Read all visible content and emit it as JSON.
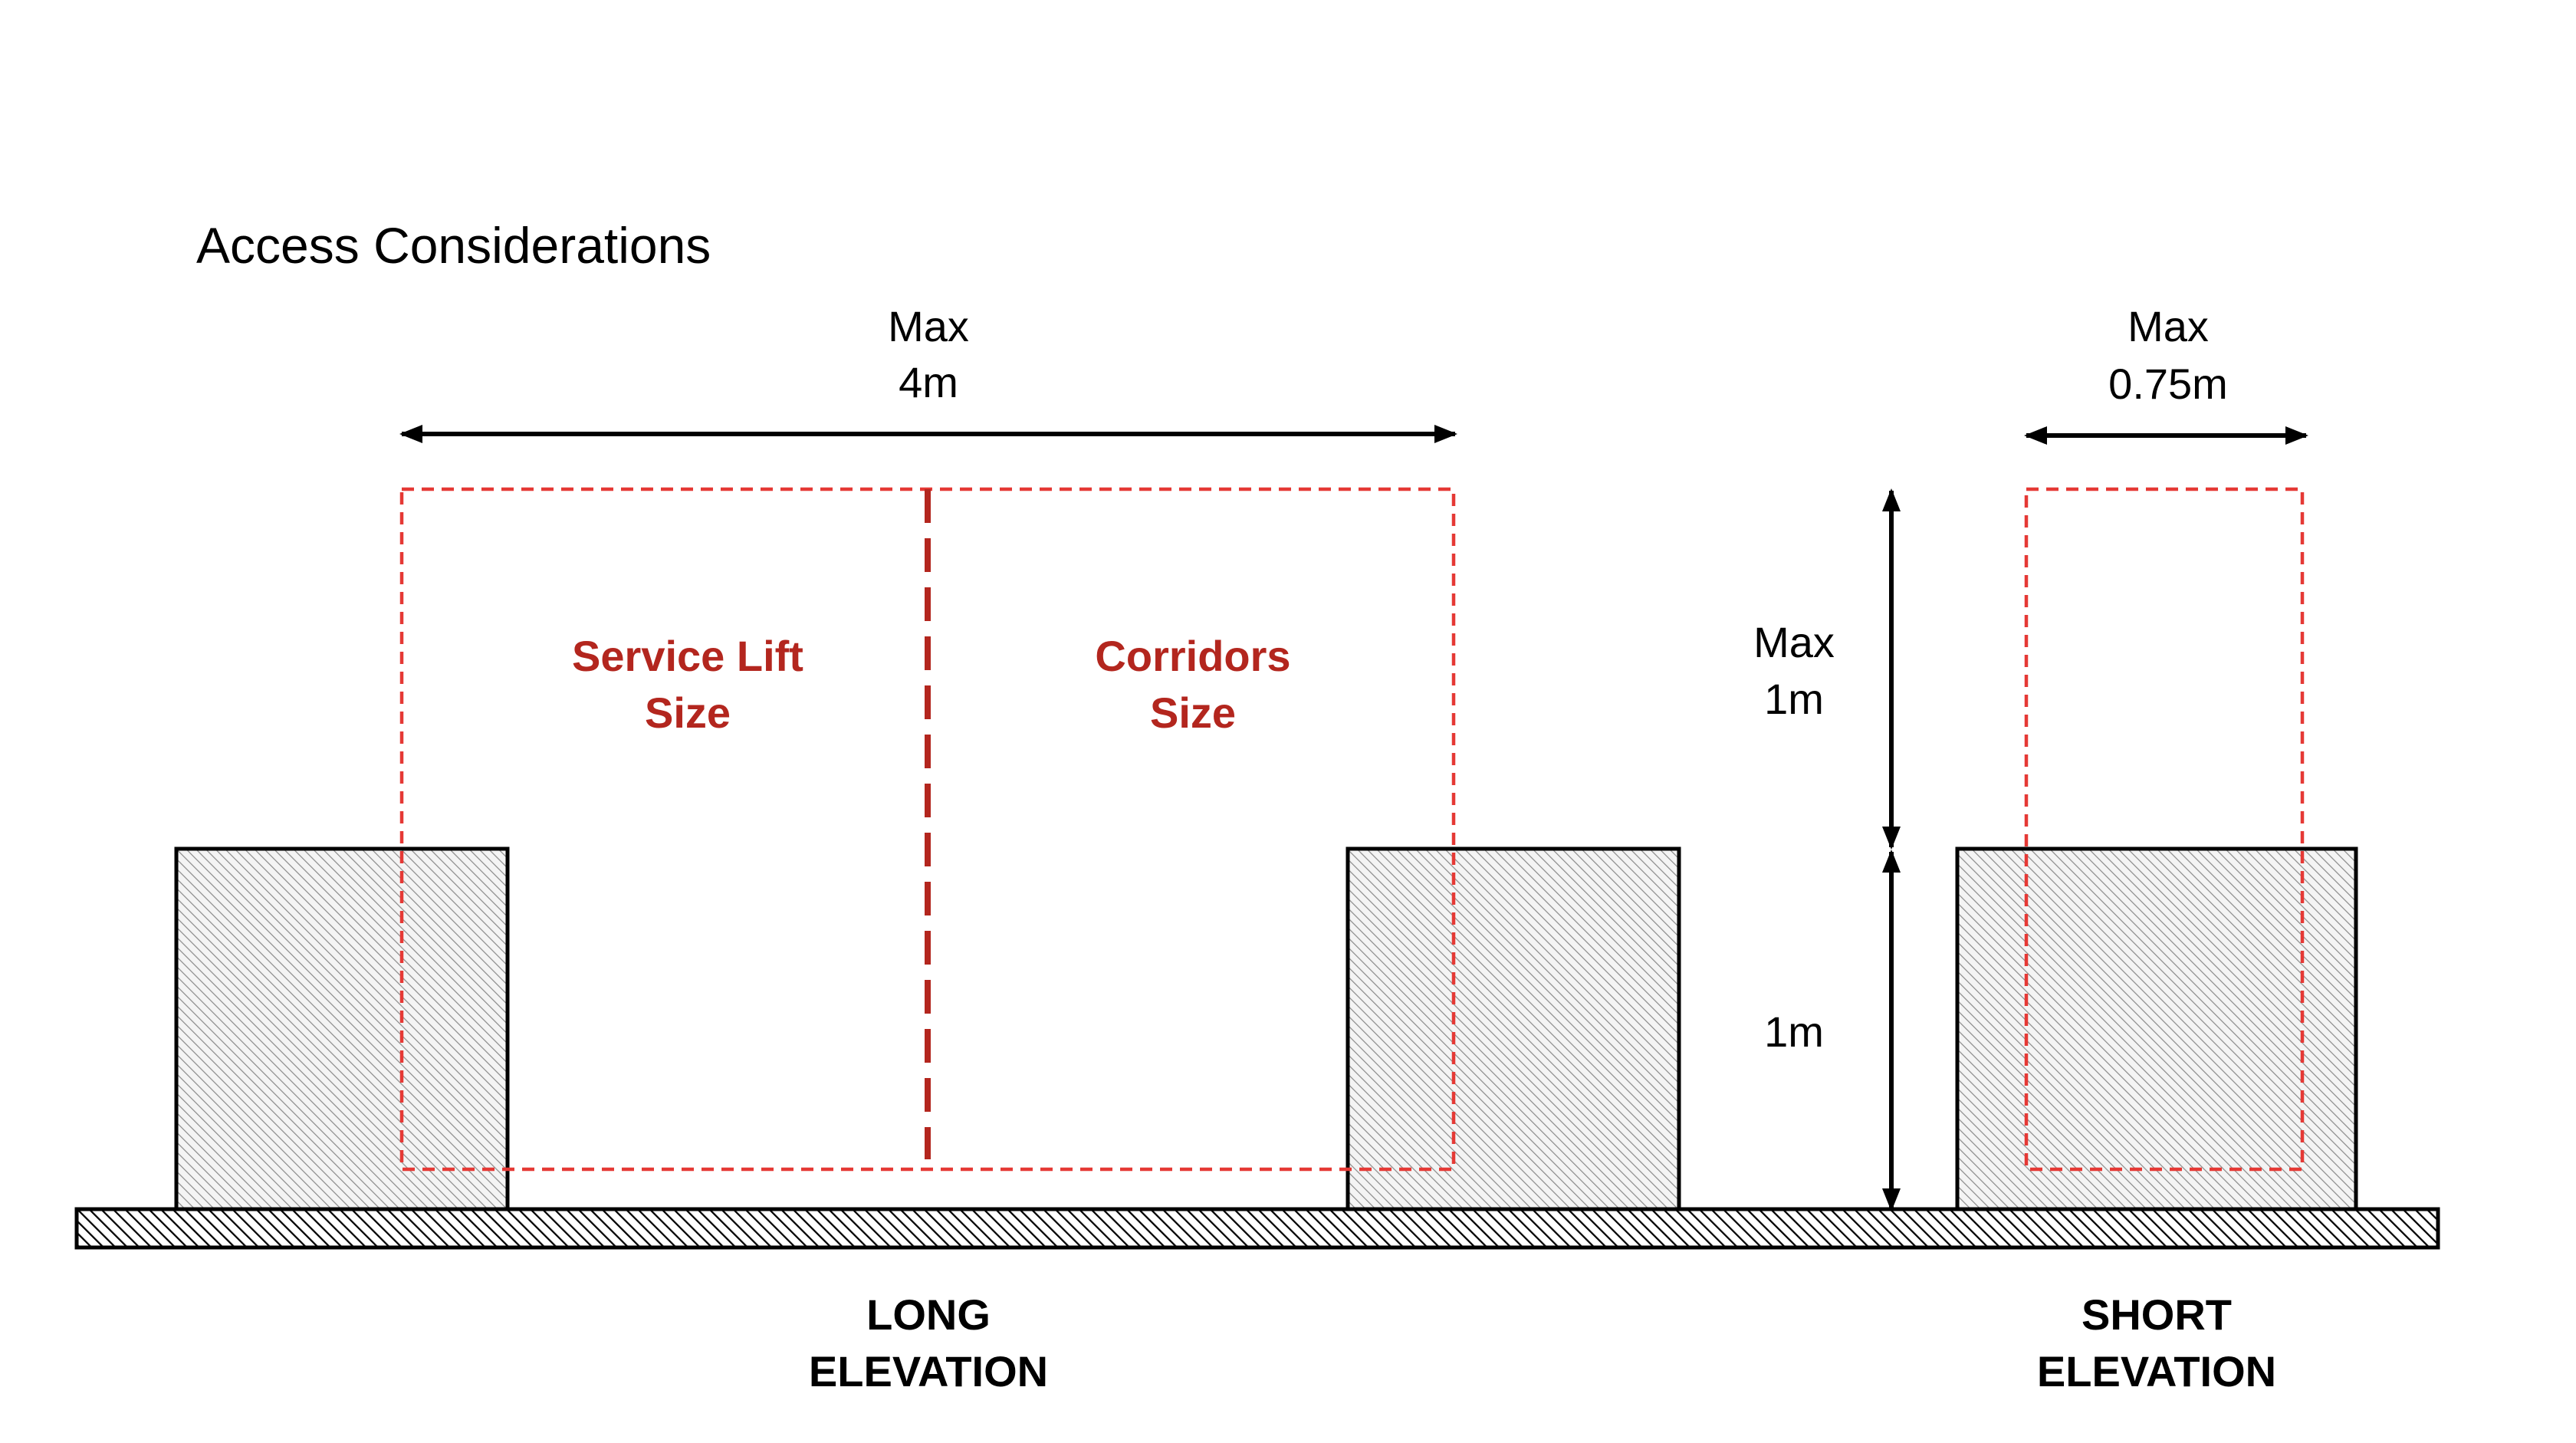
{
  "title": "Access Considerations",
  "colors": {
    "line": "#000000",
    "envelope_dash": "#e53935",
    "divider_dash": "#b3261e",
    "zone_label": "#b3261e",
    "hatch_fill": "#f2f2f2"
  },
  "dimensions": {
    "long_width": {
      "line1": "Max",
      "line2": "4m"
    },
    "short_width": {
      "line1": "Max",
      "line2": "0.75m"
    },
    "upper_height": {
      "line1": "Max",
      "line2": "1m"
    },
    "lower_height": {
      "line1": "1m"
    }
  },
  "zones": {
    "service_lift": {
      "line1": "Service Lift",
      "line2": "Size"
    },
    "corridors": {
      "line1": "Corridors",
      "line2": "Size"
    }
  },
  "elevations": {
    "long": {
      "line1": "LONG",
      "line2": "ELEVATION"
    },
    "short": {
      "line1": "SHORT",
      "line2": "ELEVATION"
    }
  }
}
